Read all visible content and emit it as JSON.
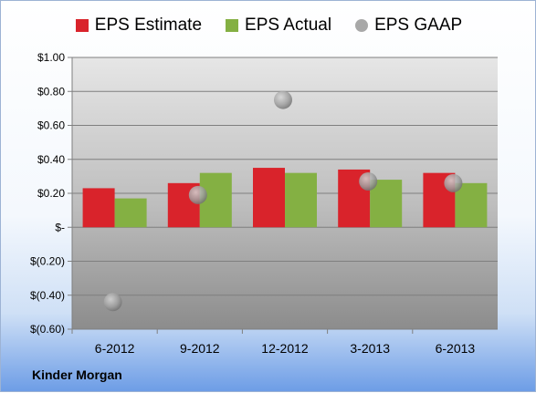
{
  "brand": "Kinder Morgan",
  "colors": {
    "estimate": "#d9232b",
    "actual": "#84b043",
    "gaap": "#a8a8a8"
  },
  "chart_data": {
    "type": "bar",
    "categories": [
      "6-2012",
      "9-2012",
      "12-2012",
      "3-2013",
      "6-2013"
    ],
    "series": [
      {
        "name": "EPS Estimate",
        "values": [
          0.23,
          0.26,
          0.35,
          0.34,
          0.32
        ]
      },
      {
        "name": "EPS Actual",
        "values": [
          0.17,
          0.32,
          0.32,
          0.28,
          0.26
        ]
      },
      {
        "name": "EPS GAAP",
        "type": "scatter",
        "values": [
          -0.44,
          0.19,
          0.75,
          0.27,
          0.26
        ]
      }
    ],
    "ylim": [
      -0.6,
      1.0
    ],
    "yticks": [
      1.0,
      0.8,
      0.6,
      0.4,
      0.2,
      0,
      -0.2,
      -0.4,
      -0.6
    ],
    "ytick_labels": [
      "$1.00",
      "$0.80",
      "$0.60",
      "$0.40",
      "$0.20",
      "$-",
      "$(0.20)",
      "$(0.40)",
      "$(0.60)"
    ],
    "legend": "top",
    "grid": true,
    "title": "",
    "xlabel": "",
    "ylabel": ""
  }
}
